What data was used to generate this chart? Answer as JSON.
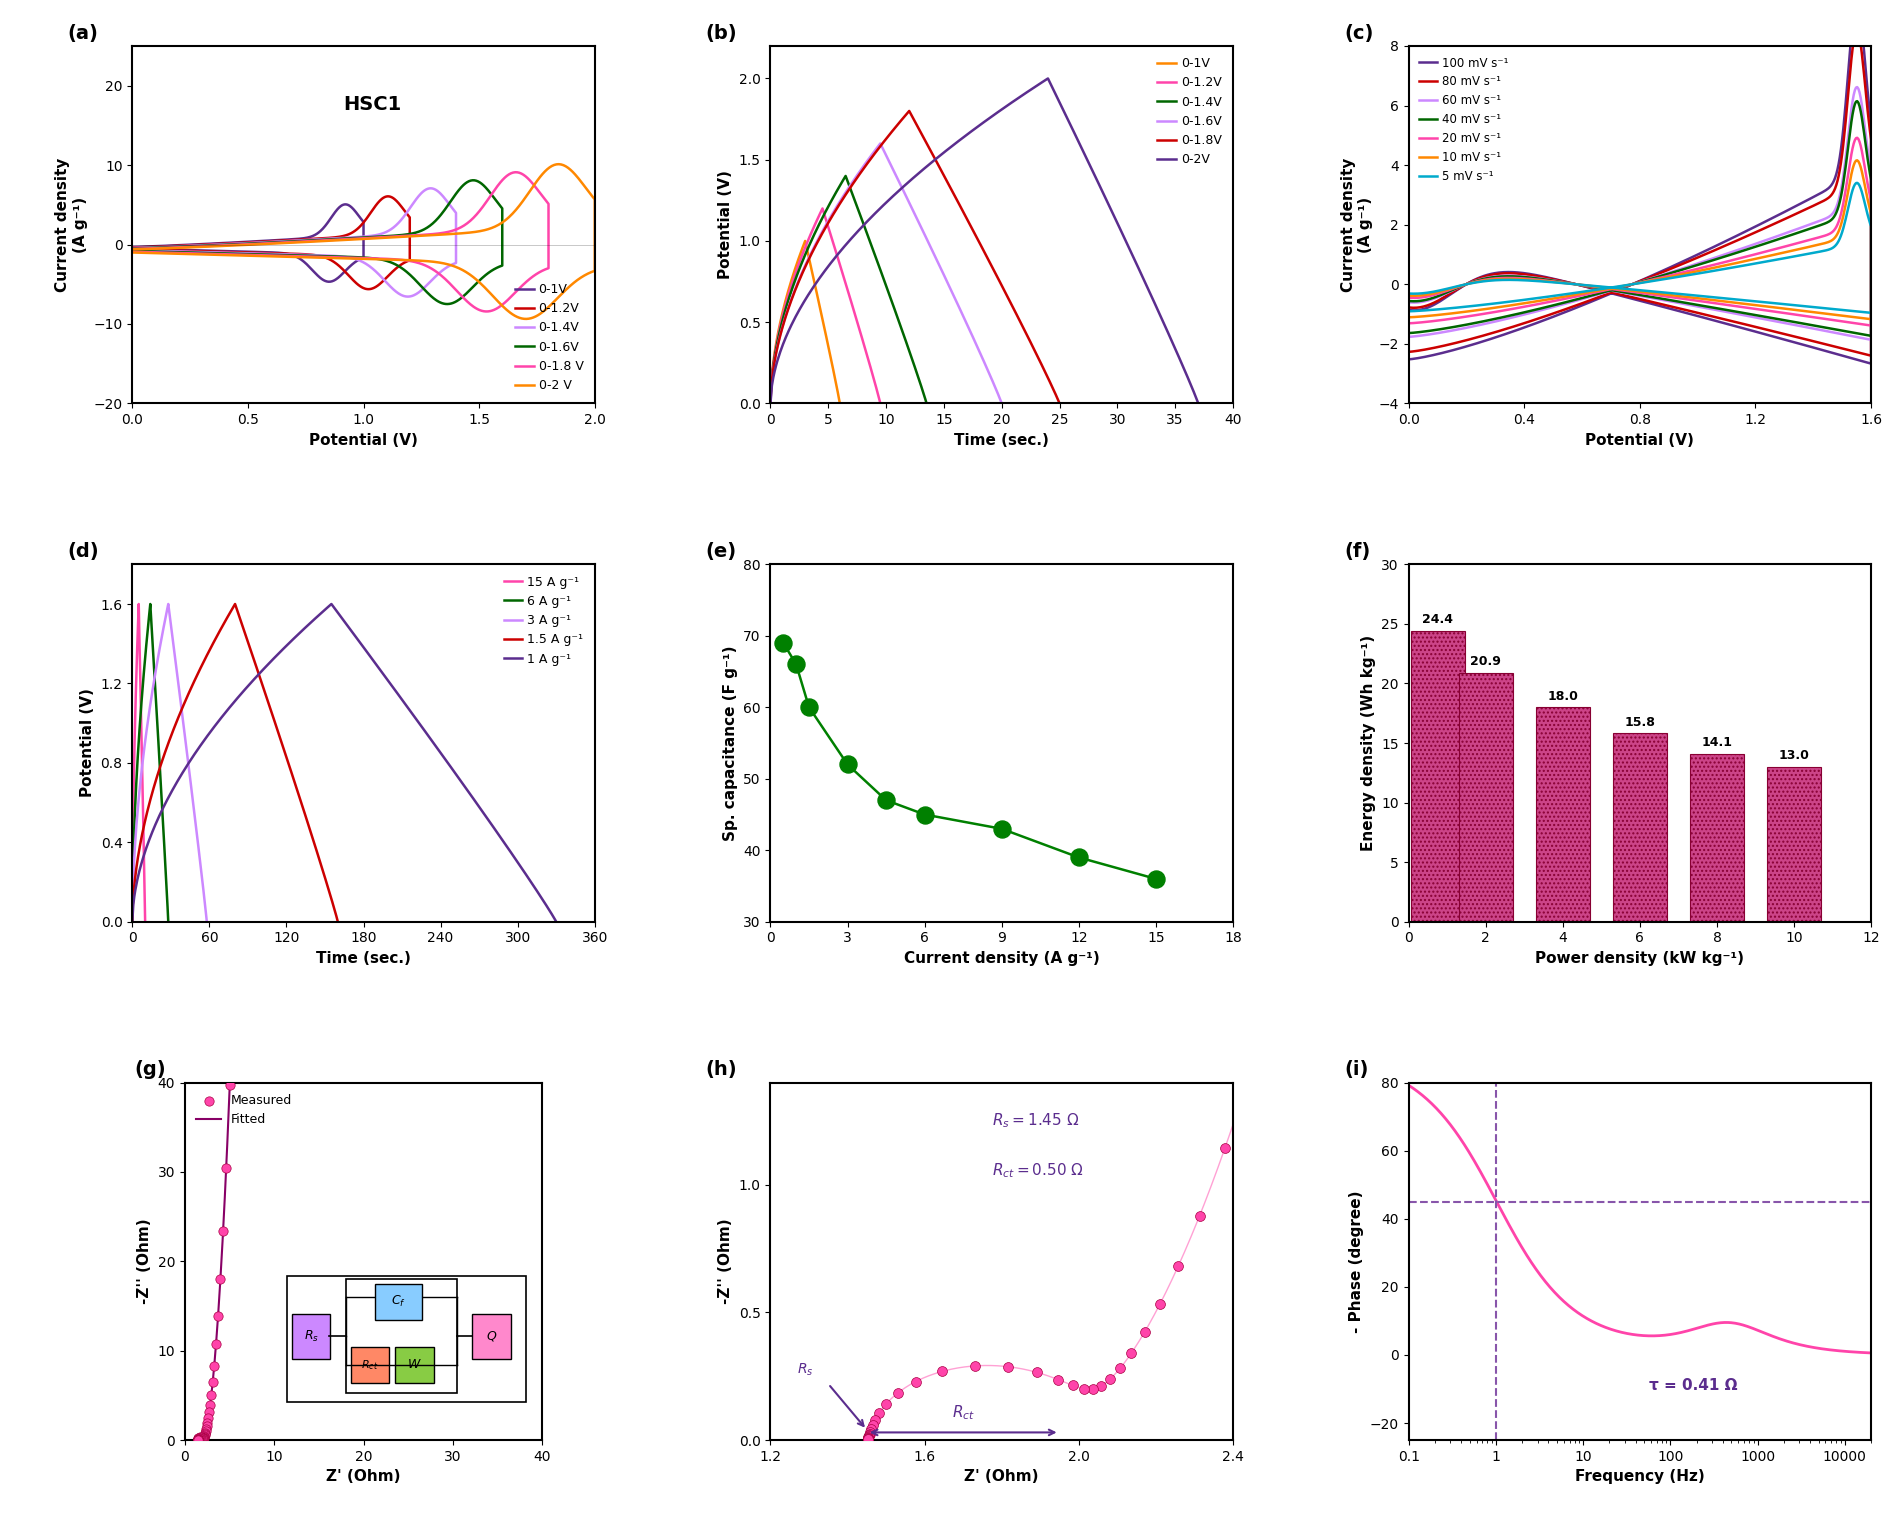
{
  "panel_a": {
    "title": "HSC1",
    "xlabel": "Potential (V)",
    "ylabel": "Current density\n(A g⁻¹)",
    "xlim": [
      0,
      2.0
    ],
    "ylim": [
      -20,
      25
    ],
    "xticks": [
      0.0,
      0.5,
      1.0,
      1.5,
      2.0
    ],
    "yticks": [
      -20,
      -10,
      0,
      10,
      20
    ],
    "curves": [
      {
        "label": "0-1V",
        "color": "#5B2D8E",
        "vmax": 1.0
      },
      {
        "label": "0-1.2V",
        "color": "#CC0000",
        "vmax": 1.2
      },
      {
        "label": "0-1.4V",
        "color": "#CC88FF",
        "vmax": 1.4
      },
      {
        "label": "0-1.6V",
        "color": "#006600",
        "vmax": 1.6
      },
      {
        "label": "0-1.8 V",
        "color": "#FF44AA",
        "vmax": 1.8
      },
      {
        "label": "0-2 V",
        "color": "#FF8800",
        "vmax": 2.0
      }
    ]
  },
  "panel_b": {
    "xlabel": "Time (sec.)",
    "ylabel": "Potential (V)",
    "xlim": [
      0,
      40
    ],
    "ylim": [
      0,
      2.2
    ],
    "xticks": [
      0,
      5,
      10,
      15,
      20,
      25,
      30,
      35,
      40
    ],
    "yticks": [
      0.0,
      0.5,
      1.0,
      1.5,
      2.0
    ],
    "curves": [
      {
        "label": "0-1V",
        "color": "#FF8800",
        "vmax": 1.0,
        "t_charge": 3.0,
        "t_total": 6.0
      },
      {
        "label": "0-1.2V",
        "color": "#FF44AA",
        "vmax": 1.2,
        "t_charge": 4.5,
        "t_total": 9.5
      },
      {
        "label": "0-1.4V",
        "color": "#006600",
        "vmax": 1.4,
        "t_charge": 6.5,
        "t_total": 13.5
      },
      {
        "label": "0-1.6V",
        "color": "#CC88FF",
        "vmax": 1.6,
        "t_charge": 9.5,
        "t_total": 20.0
      },
      {
        "label": "0-1.8V",
        "color": "#CC0000",
        "vmax": 1.8,
        "t_charge": 12.0,
        "t_total": 25.0
      },
      {
        "label": "0-2V",
        "color": "#5B2D8E",
        "vmax": 2.0,
        "t_charge": 24.0,
        "t_total": 37.0
      }
    ]
  },
  "panel_c": {
    "xlabel": "Potential (V)",
    "ylabel": "Current density\n(A g⁻¹)",
    "xlim": [
      0,
      1.6
    ],
    "ylim": [
      -4,
      8
    ],
    "xticks": [
      0.0,
      0.4,
      0.8,
      1.2,
      1.6
    ],
    "yticks": [
      -4,
      -2,
      0,
      2,
      4,
      6,
      8
    ],
    "curves": [
      {
        "label": "100 mV s⁻¹",
        "color": "#5B2D8E",
        "scale": 1.0
      },
      {
        "label": "80 mV s⁻¹",
        "color": "#CC0000",
        "scale": 0.9
      },
      {
        "label": "60 mV s⁻¹",
        "color": "#CC88FF",
        "scale": 0.7
      },
      {
        "label": "40 mV s⁻¹",
        "color": "#006600",
        "scale": 0.65
      },
      {
        "label": "20 mV s⁻¹",
        "color": "#FF44AA",
        "scale": 0.52
      },
      {
        "label": "10 mV s⁻¹",
        "color": "#FF8800",
        "scale": 0.44
      },
      {
        "label": "5 mV s⁻¹",
        "color": "#00AACC",
        "scale": 0.36
      }
    ]
  },
  "panel_d": {
    "xlabel": "Time (sec.)",
    "ylabel": "Potential (V)",
    "xlim": [
      0,
      360
    ],
    "ylim": [
      0,
      1.8
    ],
    "xticks": [
      0,
      60,
      120,
      180,
      240,
      300,
      360
    ],
    "yticks": [
      0.0,
      0.4,
      0.8,
      1.2,
      1.6
    ],
    "curves": [
      {
        "label": "15 A g⁻¹",
        "color": "#FF44AA",
        "vmax": 1.6,
        "t_charge": 5,
        "t_total": 10
      },
      {
        "label": "6 A g⁻¹",
        "color": "#006600",
        "vmax": 1.6,
        "t_charge": 14,
        "t_total": 28
      },
      {
        "label": "3 A g⁻¹",
        "color": "#CC88FF",
        "vmax": 1.6,
        "t_charge": 28,
        "t_total": 58
      },
      {
        "label": "1.5 A g⁻¹",
        "color": "#CC0000",
        "vmax": 1.6,
        "t_charge": 80,
        "t_total": 160
      },
      {
        "label": "1 A g⁻¹",
        "color": "#5B2D8E",
        "vmax": 1.6,
        "t_charge": 155,
        "t_total": 330
      }
    ]
  },
  "panel_e": {
    "xlabel": "Current density (A g⁻¹)",
    "ylabel": "Sp. capacitance (F g⁻¹)",
    "xlim": [
      0,
      18
    ],
    "ylim": [
      30,
      80
    ],
    "xticks": [
      0,
      3,
      6,
      9,
      12,
      15,
      18
    ],
    "yticks": [
      30,
      40,
      50,
      60,
      70,
      80
    ],
    "x": [
      0.5,
      1.0,
      1.5,
      3.0,
      4.5,
      6.0,
      9.0,
      12.0,
      15.0
    ],
    "y": [
      69,
      66,
      60,
      52,
      47,
      45,
      43,
      39,
      36
    ],
    "color": "#008000"
  },
  "panel_f": {
    "xlabel": "Power density (kW kg⁻¹)",
    "ylabel": "Energy density (Wh kg⁻¹)",
    "xlim": [
      0,
      12
    ],
    "ylim": [
      0,
      30
    ],
    "xticks": [
      0,
      2,
      4,
      6,
      8,
      10,
      12
    ],
    "yticks": [
      0,
      5,
      10,
      15,
      20,
      25,
      30
    ],
    "x": [
      0.75,
      2.0,
      4.0,
      6.0,
      8.0,
      10.0
    ],
    "y": [
      24.4,
      20.9,
      18.0,
      15.8,
      14.1,
      13.0
    ],
    "bar_color": "#CC4488",
    "bar_width": 1.4
  },
  "panel_g": {
    "xlabel": "Z' (Ohm)",
    "ylabel": "-Z'' (Ohm)",
    "xlim": [
      0,
      40
    ],
    "ylim": [
      0,
      40
    ],
    "xticks": [
      0,
      10,
      20,
      30,
      40
    ],
    "yticks": [
      0,
      10,
      20,
      30,
      40
    ]
  },
  "panel_h": {
    "xlabel": "Z' (Ohm)",
    "ylabel": "-Z'' (Ohm)",
    "xlim": [
      1.2,
      2.4
    ],
    "ylim": [
      0,
      1.4
    ],
    "xticks": [
      1.2,
      1.6,
      2.0,
      2.4
    ],
    "yticks": [
      0.0,
      0.5,
      1.0
    ],
    "rs": 1.45,
    "rct": 0.5,
    "annotation_rs": "Rₛ = 1.45 Ω",
    "annotation_rct": "Rₑₜ = 0.50 Ω"
  },
  "panel_i": {
    "xlabel": "Frequency (Hz)",
    "ylabel": "- Phase (degree)",
    "ylim": [
      -25,
      80
    ],
    "yticks": [
      -20,
      0,
      20,
      40,
      60,
      80
    ],
    "tau_annotation": "τ = 0.41 Ω",
    "tau_freq": 1.0,
    "phase_at_tau": 45
  }
}
